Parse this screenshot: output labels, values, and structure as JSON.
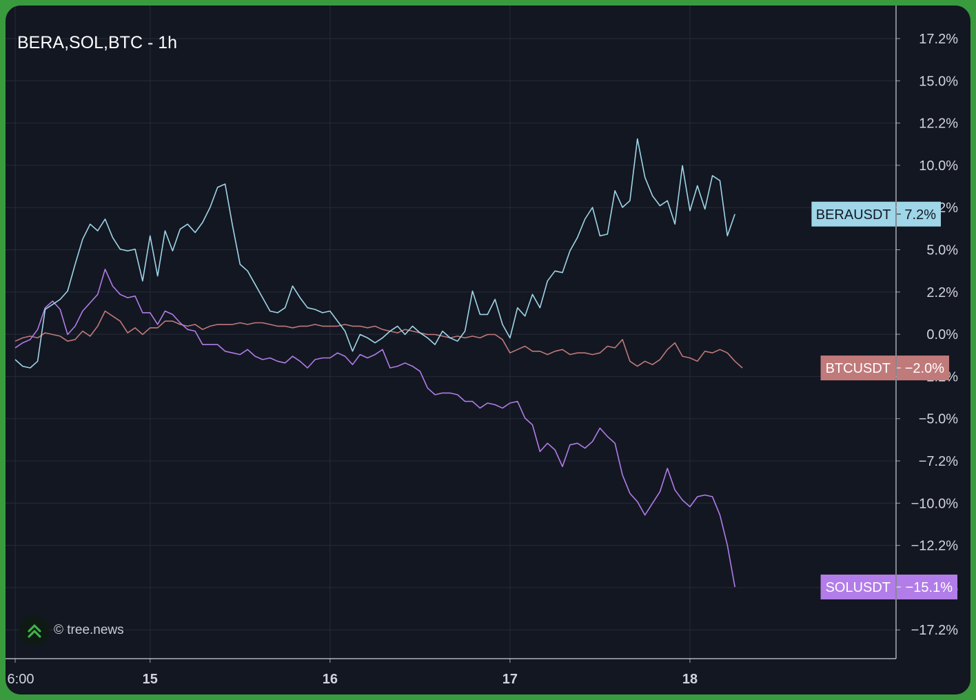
{
  "colors": {
    "background": "#131722",
    "grid": "#262b38",
    "axis_text": "#d1d4dc",
    "bera": "#9fd6e8",
    "btc": "#c07a7a",
    "sol": "#b27de8",
    "outer": "#3a9a3e"
  },
  "watermark": {
    "icon": "chevron-up-icon",
    "text": "© tree.news"
  },
  "chart_data": {
    "type": "line",
    "title": "BERA,SOL,BTC - 1h",
    "y_ticks": [
      "17.2%",
      "15.0%",
      "12.2%",
      "10.0%",
      "7.2%",
      "5.0%",
      "2.2%",
      "0.0%",
      "−2.2%",
      "−5.0%",
      "−7.2%",
      "−10.0%",
      "−12.2%",
      "−15.1%",
      "−17.2%"
    ],
    "ylim": [
      -17.5,
      17.5
    ],
    "x_ticks": [
      {
        "label": "6:00",
        "x": 0
      },
      {
        "label": "15",
        "x": 18
      },
      {
        "label": "16",
        "x": 42
      },
      {
        "label": "17",
        "x": 66
      },
      {
        "label": "18",
        "x": 90
      }
    ],
    "xlim": [
      0,
      106
    ],
    "series": [
      {
        "name": "BERAUSDT",
        "color": "#9fd6e8",
        "last_label": "7.2%",
        "last_value": 7.2,
        "values": [
          -1.5,
          -1.9,
          -2.0,
          -1.6,
          1.5,
          1.8,
          2.1,
          2.6,
          4.2,
          5.7,
          6.6,
          6.2,
          6.9,
          5.8,
          5.1,
          5.0,
          5.1,
          3.2,
          5.9,
          3.5,
          6.2,
          5.0,
          6.3,
          6.6,
          6.1,
          6.7,
          7.6,
          8.8,
          9.0,
          6.5,
          4.2,
          3.8,
          3.0,
          2.2,
          1.4,
          1.3,
          1.6,
          2.9,
          2.2,
          1.6,
          1.5,
          1.3,
          1.4,
          0.8,
          0.2,
          -1.0,
          0.0,
          -0.2,
          -0.5,
          -0.2,
          0.2,
          0.5,
          0.0,
          0.5,
          0.1,
          -0.2,
          -0.6,
          0.2,
          -0.2,
          -0.4,
          0.2,
          2.6,
          1.2,
          1.2,
          2.1,
          0.6,
          -0.2,
          1.6,
          1.1,
          2.4,
          1.6,
          3.2,
          3.8,
          3.7,
          5.0,
          5.8,
          6.9,
          7.6,
          5.9,
          6.0,
          8.6,
          7.6,
          8.0,
          11.7,
          9.4,
          8.3,
          7.7,
          8.0,
          6.6,
          10.1,
          7.4,
          8.9,
          7.5,
          9.5,
          9.2,
          5.9,
          7.2
        ]
      },
      {
        "name": "BTCUSDT",
        "color": "#c07a7a",
        "last_label": "−2.0%",
        "last_value": -2.0,
        "values": [
          -0.4,
          -0.2,
          -0.1,
          -0.2,
          0.1,
          0.0,
          -0.1,
          -0.4,
          -0.3,
          0.2,
          -0.1,
          0.5,
          1.4,
          1.1,
          0.8,
          0.1,
          0.4,
          0.0,
          0.4,
          0.4,
          0.8,
          0.8,
          0.6,
          0.5,
          0.6,
          0.3,
          0.5,
          0.6,
          0.6,
          0.6,
          0.7,
          0.6,
          0.7,
          0.7,
          0.6,
          0.5,
          0.5,
          0.4,
          0.5,
          0.5,
          0.6,
          0.5,
          0.5,
          0.5,
          0.6,
          0.5,
          0.5,
          0.4,
          0.5,
          0.3,
          0.2,
          0.1,
          0.3,
          0.2,
          0.1,
          0.0,
          0.0,
          -0.1,
          -0.2,
          -0.1,
          -0.2,
          -0.1,
          -0.2,
          0.0,
          0.0,
          -0.3,
          -1.1,
          -0.9,
          -0.7,
          -1.0,
          -1.0,
          -1.2,
          -1.0,
          -0.9,
          -1.2,
          -1.1,
          -1.1,
          -1.2,
          -1.1,
          -0.7,
          -0.8,
          -0.3,
          -1.6,
          -1.9,
          -1.6,
          -1.8,
          -1.5,
          -0.9,
          -0.5,
          -1.3,
          -1.4,
          -1.6,
          -1.0,
          -1.1,
          -0.9,
          -1.1,
          -1.6,
          -2.0
        ]
      },
      {
        "name": "SOLUSDT",
        "color": "#b27de8",
        "last_label": "−15.1%",
        "last_value": -15.1,
        "values": [
          -0.8,
          -0.5,
          -0.3,
          0.3,
          1.6,
          2.0,
          1.5,
          0.0,
          0.5,
          1.4,
          1.9,
          2.4,
          3.9,
          2.9,
          2.4,
          2.2,
          2.3,
          1.3,
          1.3,
          0.6,
          1.4,
          1.2,
          0.7,
          0.3,
          0.2,
          -0.6,
          -0.6,
          -0.6,
          -1.0,
          -1.1,
          -1.2,
          -0.9,
          -1.3,
          -1.5,
          -1.4,
          -1.6,
          -1.7,
          -1.3,
          -1.6,
          -2.0,
          -1.5,
          -1.4,
          -1.4,
          -1.1,
          -1.3,
          -1.8,
          -1.2,
          -1.4,
          -1.2,
          -0.9,
          -2.0,
          -1.9,
          -1.7,
          -1.9,
          -2.2,
          -3.2,
          -3.6,
          -3.5,
          -3.5,
          -3.6,
          -4.0,
          -4.0,
          -4.4,
          -4.1,
          -4.2,
          -4.4,
          -4.1,
          -4.0,
          -5.0,
          -5.4,
          -7.0,
          -6.5,
          -6.9,
          -7.9,
          -6.6,
          -6.5,
          -6.8,
          -6.4,
          -5.6,
          -6.1,
          -6.5,
          -8.4,
          -9.5,
          -10.0,
          -10.8,
          -10.1,
          -9.4,
          -8.0,
          -9.3,
          -9.9,
          -10.3,
          -9.7,
          -9.6,
          -9.7,
          -10.8,
          -12.6,
          -15.1
        ]
      }
    ]
  }
}
